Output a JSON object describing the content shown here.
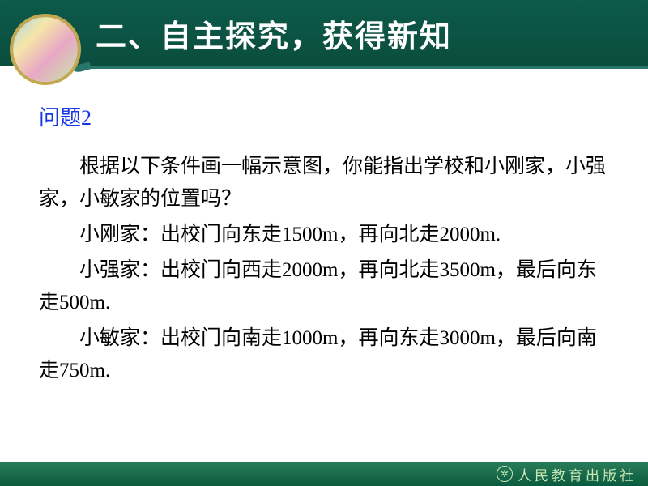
{
  "header": {
    "title": "二、自主探究，获得新知",
    "bg_color": "#0d5a4a",
    "title_color": "#ffffff",
    "title_fontsize": 38,
    "logo_border_color": "#c4a850"
  },
  "question": {
    "label": "问题2",
    "label_color": "#1536e6",
    "label_fontsize": 26,
    "body_fontsize": 25,
    "body_color": "#000000",
    "paragraphs": [
      "根据以下条件画一幅示意图，你能指出学校和小刚家，小强家，小敏家的位置吗？",
      "小刚家：出校门向东走1500m，再向北走2000m.",
      "小强家：出校门向西走2000m，再向北走3500m，最后向东走500m.",
      "小敏家：出校门向南走1000m，再向东走3000m，最后向南走750m."
    ]
  },
  "footer": {
    "publisher": "人民教育出版社",
    "bg_color": "#1a6d4a",
    "text_color": "#c9e8b5",
    "fontsize": 17
  }
}
